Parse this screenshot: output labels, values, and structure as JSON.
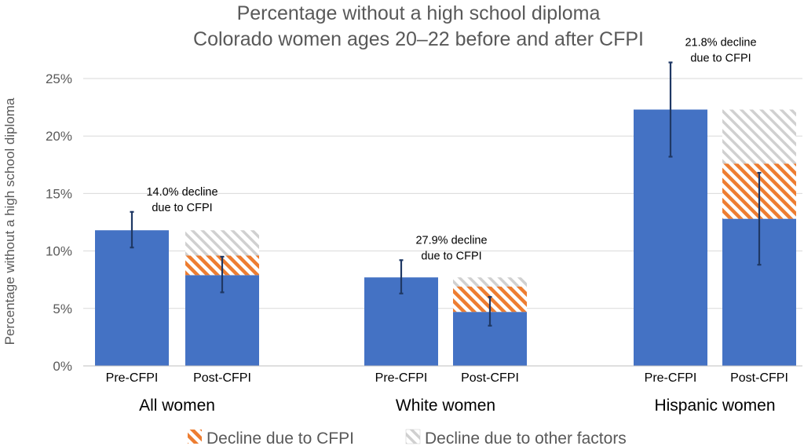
{
  "chart_data": {
    "type": "bar",
    "stacked": true,
    "title": "Percentage without a high school diploma",
    "subtitle": "Colorado women ages 20–22 before and after CFPI",
    "ylabel": "Percentage without a high school diploma",
    "ylim": [
      0,
      25
    ],
    "yticks": [
      "0%",
      "5%",
      "10%",
      "15%",
      "20%",
      "25%"
    ],
    "grid": true,
    "legend_position": "bottom",
    "groups": [
      {
        "name": "All women",
        "annotation_line1": "14.0% decline",
        "annotation_line2": "due to CFPI",
        "bars": [
          {
            "label": "Pre-CFPI",
            "value": 11.8,
            "err_low": 10.3,
            "err_high": 13.4
          },
          {
            "label": "Post-CFPI",
            "base": 7.9,
            "cfpi": 1.7,
            "other": 2.2,
            "err_low": 6.4,
            "err_high": 9.5
          }
        ]
      },
      {
        "name": "White women",
        "annotation_line1": "27.9% decline",
        "annotation_line2": "due to CFPI",
        "bars": [
          {
            "label": "Pre-CFPI",
            "value": 7.7,
            "err_low": 6.3,
            "err_high": 9.2
          },
          {
            "label": "Post-CFPI",
            "base": 4.7,
            "cfpi": 2.2,
            "other": 0.8,
            "err_low": 3.5,
            "err_high": 6.0
          }
        ]
      },
      {
        "name": "Hispanic women",
        "annotation_line1": "21.8% decline",
        "annotation_line2": "due to CFPI",
        "bars": [
          {
            "label": "Pre-CFPI",
            "value": 22.3,
            "err_low": 18.2,
            "err_high": 26.4
          },
          {
            "label": "Post-CFPI",
            "base": 12.8,
            "cfpi": 4.8,
            "other": 4.7,
            "err_low": 8.8,
            "err_high": 16.8
          }
        ]
      }
    ],
    "legend": [
      {
        "key": "cfpi",
        "label": "Decline due to CFPI"
      },
      {
        "key": "other",
        "label": "Decline due to other factors"
      }
    ],
    "colors": {
      "bar": "#4472C4",
      "cfpi_stripe": "#ED7D31",
      "other_stripe": "#D0D0D0",
      "error_bar": "#1F3864",
      "grid": "#D9D9D9"
    }
  }
}
